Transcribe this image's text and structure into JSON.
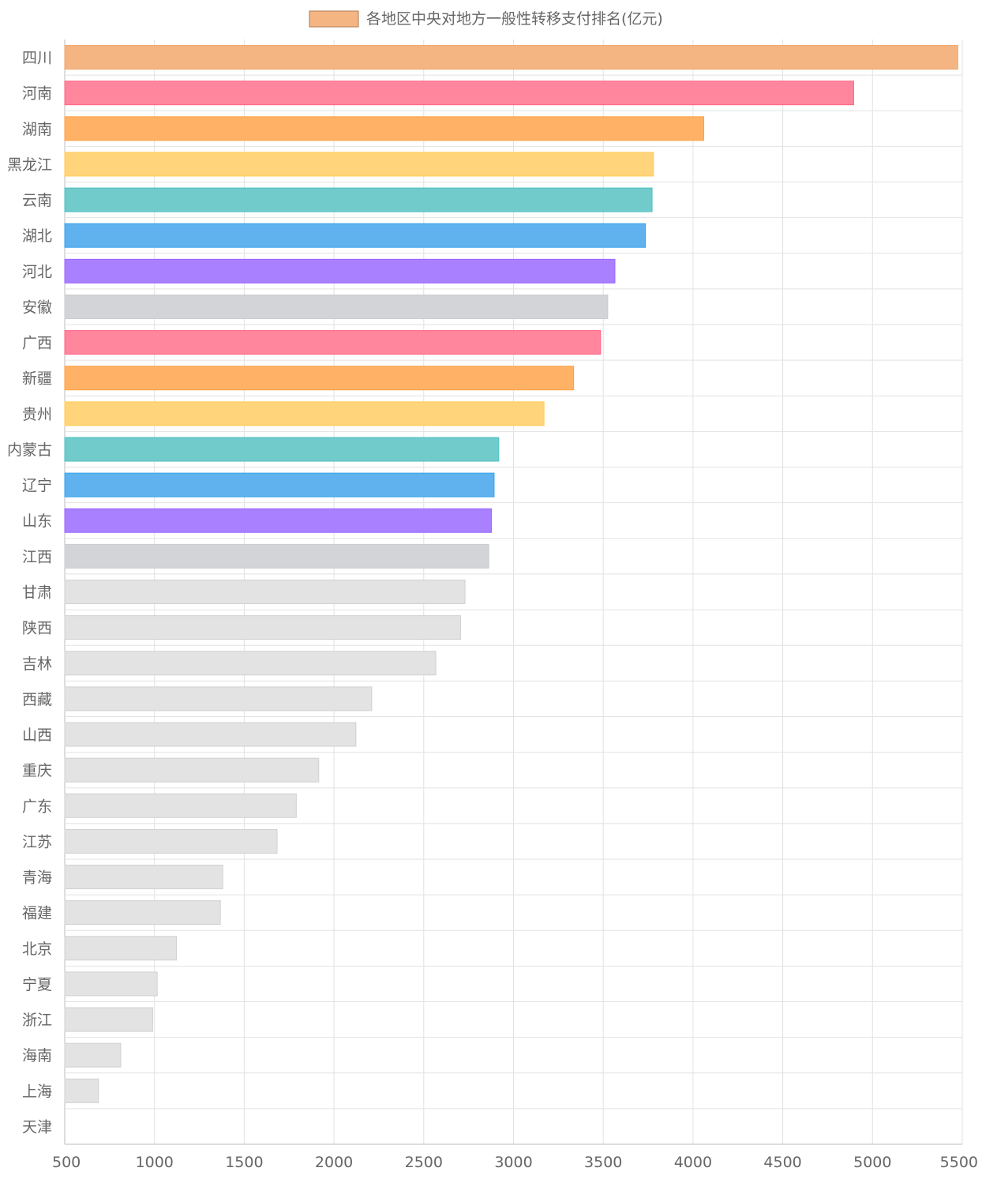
{
  "chart_data": {
    "type": "bar",
    "orientation": "horizontal",
    "legend": {
      "label": "各地区中央对地方一般性转移支付排名(亿元)",
      "placement": "top-center",
      "color": "#f5b583"
    },
    "xlim": [
      500,
      5500
    ],
    "x_ticks": [
      "500",
      "1000",
      "1500",
      "2000",
      "2500",
      "3000",
      "3500",
      "4000",
      "4500",
      "5000",
      "5500"
    ],
    "x_tick_values": [
      500,
      1000,
      1500,
      2000,
      2500,
      3000,
      3500,
      4000,
      4500,
      5000,
      5500
    ],
    "grid": true,
    "categories": [
      "四川",
      "河南",
      "湖南",
      "黑龙江",
      "云南",
      "湖北",
      "河北",
      "安徽",
      "广西",
      "新疆",
      "贵州",
      "内蒙古",
      "辽宁",
      "山东",
      "江西",
      "甘肃",
      "陕西",
      "吉林",
      "西藏",
      "山西",
      "重庆",
      "广东",
      "江苏",
      "青海",
      "福建",
      "北京",
      "宁夏",
      "浙江",
      "海南",
      "上海",
      "天津"
    ],
    "values": [
      5475,
      4895,
      4060,
      3780,
      3772,
      3735,
      3565,
      3525,
      3485,
      3335,
      3170,
      2918,
      2892,
      2877,
      2862,
      2730,
      2705,
      2567,
      2210,
      2122,
      1915,
      1790,
      1683,
      1380,
      1367,
      1122,
      1015,
      990,
      812,
      688,
      500
    ],
    "colors": [
      "#f5b583",
      "#ff869d",
      "#ffb266",
      "#ffd47a",
      "#72cbcb",
      "#5fb2ee",
      "#a980ff",
      "#d3d4d8",
      "#ff869d",
      "#ffb266",
      "#ffd47a",
      "#72cbcb",
      "#5fb2ee",
      "#a980ff",
      "#d3d4d8",
      "#e3e3e3",
      "#e3e3e3",
      "#e3e3e3",
      "#e3e3e3",
      "#e3e3e3",
      "#e3e3e3",
      "#e3e3e3",
      "#e3e3e3",
      "#e3e3e3",
      "#e3e3e3",
      "#e3e3e3",
      "#e3e3e3",
      "#e3e3e3",
      "#e3e3e3",
      "#e3e3e3",
      "#e3e3e3"
    ],
    "border_colors": [
      "#f0a567",
      "#ff6384",
      "#ff9f40",
      "#ffcd56",
      "#4bc0c0",
      "#36a2eb",
      "#9966ff",
      "#c9cbcf",
      "#ff6384",
      "#ff9f40",
      "#ffcd56",
      "#4bc0c0",
      "#36a2eb",
      "#9966ff",
      "#c9cbcf",
      "#d0d0d0",
      "#d0d0d0",
      "#d0d0d0",
      "#d0d0d0",
      "#d0d0d0",
      "#d0d0d0",
      "#d0d0d0",
      "#d0d0d0",
      "#d0d0d0",
      "#d0d0d0",
      "#d0d0d0",
      "#d0d0d0",
      "#d0d0d0",
      "#d0d0d0",
      "#d0d0d0",
      "#d0d0d0"
    ]
  }
}
